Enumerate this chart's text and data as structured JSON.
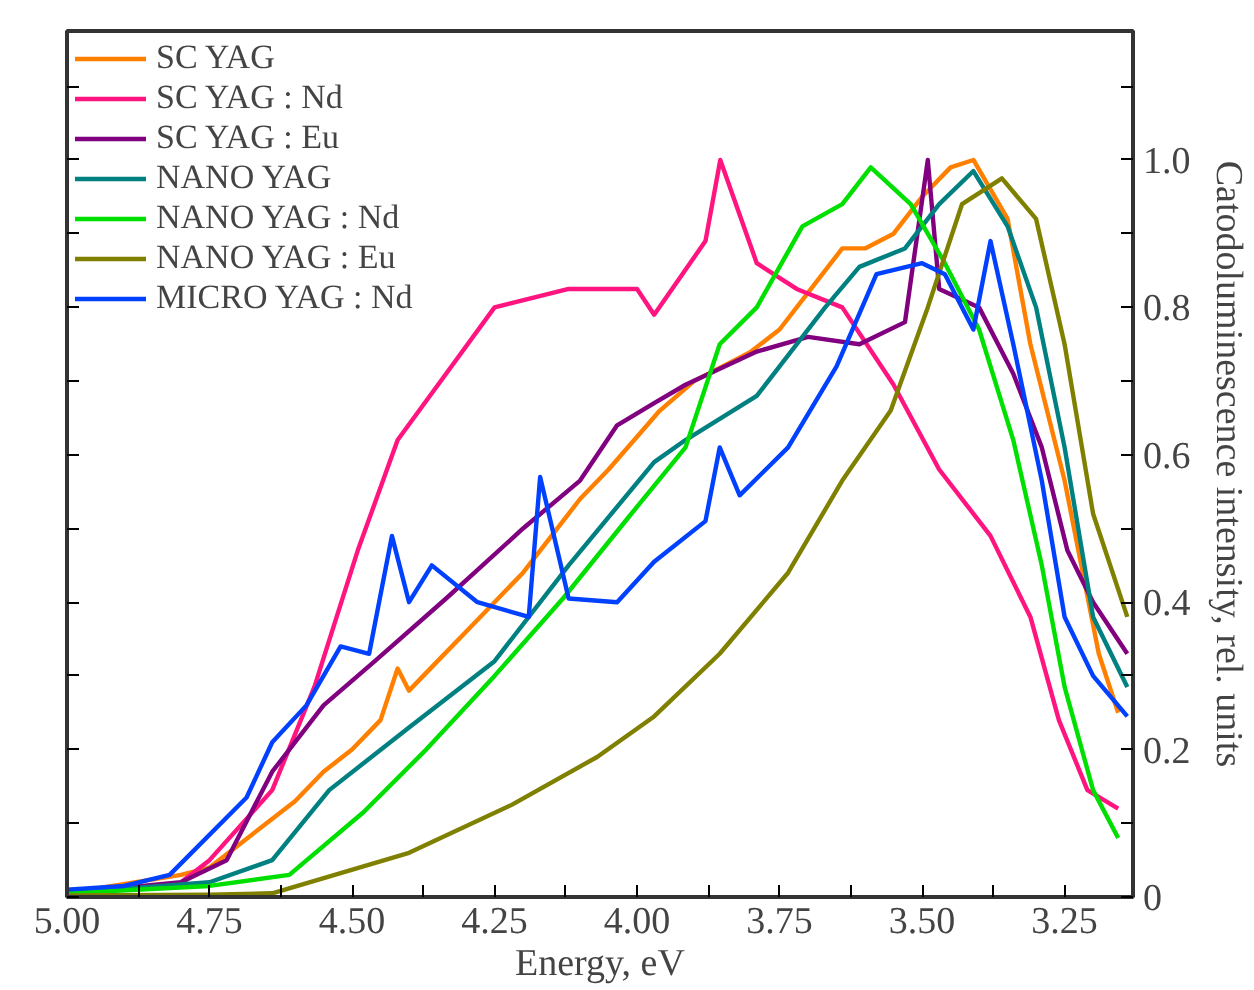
{
  "chart_data": {
    "type": "line",
    "xlabel": "Energy, eV",
    "ylabel": "Catodoluminescence intensity, rel. units",
    "xlim": [
      5.0,
      3.13
    ],
    "ylim": [
      0,
      1.175
    ],
    "xticks": [
      {
        "value": 5.0,
        "label": "5.00"
      },
      {
        "value": 4.875,
        "label": null
      },
      {
        "value": 4.75,
        "label": "4.75"
      },
      {
        "value": 4.625,
        "label": null
      },
      {
        "value": 4.5,
        "label": "4.50"
      },
      {
        "value": 4.375,
        "label": null
      },
      {
        "value": 4.25,
        "label": "4.25"
      },
      {
        "value": 4.125,
        "label": null
      },
      {
        "value": 4.0,
        "label": "4.00"
      },
      {
        "value": 3.875,
        "label": null
      },
      {
        "value": 3.75,
        "label": "3.75"
      },
      {
        "value": 3.625,
        "label": null
      },
      {
        "value": 3.5,
        "label": "3.50"
      },
      {
        "value": 3.375,
        "label": null
      },
      {
        "value": 3.25,
        "label": "3.25"
      }
    ],
    "yticks": [
      0,
      {
        "value": 0.1,
        "label": null
      },
      {
        "value": 0.2,
        "label": "0.2"
      },
      {
        "value": 0.3,
        "label": null
      },
      {
        "value": 0.4,
        "label": "0.4"
      },
      {
        "value": 0.5,
        "label": null
      },
      {
        "value": 0.6,
        "label": "0.6"
      },
      {
        "value": 0.7,
        "label": null
      },
      {
        "value": 0.8,
        "label": "0.8"
      },
      {
        "value": 0.9,
        "label": null
      },
      {
        "value": 1.0,
        "label": "1.0"
      },
      {
        "value": 1.1,
        "label": null
      }
    ],
    "grid": false,
    "legend": "top left",
    "line_style": "solid",
    "marker": "none",
    "series": [
      {
        "name": "SC YAG",
        "color": "#ff8000",
        "x": [
          5.0,
          4.8,
          4.75,
          4.7,
          4.65,
          4.6,
          4.55,
          4.5,
          4.45,
          4.42,
          4.4,
          4.35,
          4.3,
          4.25,
          4.2,
          4.15,
          4.1,
          4.05,
          3.96,
          3.9,
          3.8,
          3.75,
          3.7,
          3.64,
          3.6,
          3.55,
          3.5,
          3.45,
          3.41,
          3.35,
          3.31,
          3.25,
          3.19,
          3.156
        ],
        "values": [
          0.005,
          0.03,
          0.04,
          0.07,
          0.1,
          0.13,
          0.17,
          0.2,
          0.24,
          0.31,
          0.28,
          0.32,
          0.36,
          0.4,
          0.44,
          0.49,
          0.54,
          0.58,
          0.66,
          0.7,
          0.74,
          0.77,
          0.82,
          0.88,
          0.88,
          0.9,
          0.95,
          0.99,
          1.0,
          0.92,
          0.75,
          0.565,
          0.33,
          0.25
        ]
      },
      {
        "name": "SC YAG : Nd",
        "color": "#ff1480",
        "x": [
          4.8,
          4.75,
          4.64,
          4.566,
          4.49,
          4.42,
          4.335,
          4.25,
          4.12,
          4.0,
          3.97,
          3.88,
          3.854,
          3.79,
          3.72,
          3.64,
          3.55,
          3.47,
          3.38,
          3.31,
          3.26,
          3.21,
          3.156
        ],
        "values": [
          0.02,
          0.05,
          0.145,
          0.285,
          0.47,
          0.62,
          0.71,
          0.8,
          0.825,
          0.825,
          0.79,
          0.89,
          1.0,
          0.86,
          0.825,
          0.8,
          0.695,
          0.58,
          0.49,
          0.38,
          0.24,
          0.145,
          0.12
        ]
      },
      {
        "name": "SC YAG : Eu",
        "color": "#800080",
        "x": [
          5.0,
          4.8,
          4.72,
          4.64,
          4.55,
          4.46,
          4.335,
          4.2,
          4.1,
          4.035,
          3.97,
          3.915,
          3.79,
          3.7,
          3.61,
          3.53,
          3.49,
          3.47,
          3.4,
          3.34,
          3.29,
          3.245,
          3.2,
          3.14
        ],
        "values": [
          0.005,
          0.02,
          0.05,
          0.17,
          0.26,
          0.32,
          0.405,
          0.5,
          0.565,
          0.64,
          0.67,
          0.695,
          0.74,
          0.76,
          0.75,
          0.78,
          1.0,
          0.825,
          0.8,
          0.71,
          0.61,
          0.47,
          0.4,
          0.33
        ]
      },
      {
        "name": "NANO YAG",
        "color": "#008080",
        "x": [
          5.0,
          4.75,
          4.64,
          4.54,
          4.4,
          4.25,
          4.12,
          3.97,
          3.915,
          3.79,
          3.67,
          3.61,
          3.53,
          3.47,
          3.41,
          3.35,
          3.3,
          3.25,
          3.2,
          3.14
        ],
        "values": [
          0.005,
          0.02,
          0.05,
          0.145,
          0.23,
          0.32,
          0.45,
          0.59,
          0.62,
          0.68,
          0.8,
          0.855,
          0.88,
          0.94,
          0.985,
          0.91,
          0.8,
          0.61,
          0.38,
          0.285
        ]
      },
      {
        "name": "NANO YAG : Nd",
        "color": "#00e000",
        "x": [
          5.0,
          4.75,
          4.61,
          4.48,
          4.37,
          4.25,
          4.13,
          4.01,
          3.915,
          3.855,
          3.79,
          3.71,
          3.64,
          3.59,
          3.52,
          3.46,
          3.4,
          3.34,
          3.29,
          3.25,
          3.2,
          3.156
        ],
        "values": [
          0.005,
          0.015,
          0.03,
          0.115,
          0.2,
          0.3,
          0.405,
          0.52,
          0.61,
          0.75,
          0.8,
          0.91,
          0.94,
          0.99,
          0.94,
          0.86,
          0.77,
          0.62,
          0.45,
          0.285,
          0.145,
          0.08
        ]
      },
      {
        "name": "NANO YAG : Eu",
        "color": "#808000",
        "x": [
          5.0,
          4.75,
          4.64,
          4.4,
          4.22,
          4.07,
          3.97,
          3.855,
          3.735,
          3.64,
          3.555,
          3.49,
          3.43,
          3.36,
          3.3,
          3.25,
          3.2,
          3.14
        ],
        "values": [
          0.002,
          0.003,
          0.005,
          0.06,
          0.125,
          0.19,
          0.245,
          0.33,
          0.44,
          0.565,
          0.66,
          0.8,
          0.94,
          0.975,
          0.92,
          0.75,
          0.52,
          0.38
        ]
      },
      {
        "name": "MICRO YAG : Nd",
        "color": "#0040ff",
        "x": [
          5.0,
          4.9,
          4.82,
          4.685,
          4.64,
          4.58,
          4.52,
          4.47,
          4.43,
          4.4,
          4.36,
          4.28,
          4.19,
          4.17,
          4.12,
          4.035,
          3.97,
          3.88,
          3.855,
          3.82,
          3.735,
          3.65,
          3.58,
          3.5,
          3.46,
          3.41,
          3.38,
          3.34,
          3.29,
          3.25,
          3.2,
          3.14
        ],
        "values": [
          0.01,
          0.015,
          0.03,
          0.135,
          0.21,
          0.26,
          0.34,
          0.33,
          0.49,
          0.4,
          0.45,
          0.4,
          0.38,
          0.57,
          0.405,
          0.4,
          0.455,
          0.51,
          0.61,
          0.545,
          0.61,
          0.72,
          0.845,
          0.86,
          0.845,
          0.77,
          0.89,
          0.75,
          0.565,
          0.38,
          0.3,
          0.245
        ]
      }
    ]
  }
}
